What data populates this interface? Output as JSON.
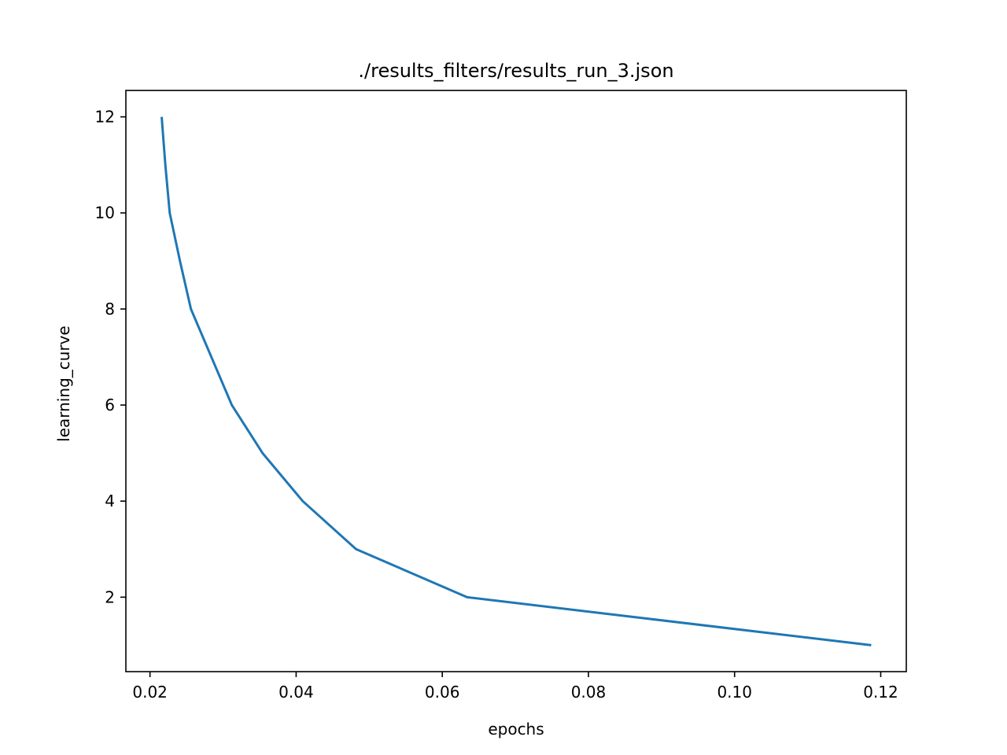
{
  "chart_data": {
    "type": "line",
    "title": "./results_filters/results_run_3.json",
    "xlabel": "epochs",
    "ylabel": "learning_curve",
    "xlim": [
      0.0167,
      0.1235
    ],
    "ylim": [
      0.45,
      12.55
    ],
    "x_ticks": [
      0.02,
      0.04,
      0.06,
      0.08,
      0.1,
      0.12
    ],
    "x_tick_labels": [
      "0.02",
      "0.04",
      "0.06",
      "0.08",
      "0.10",
      "0.12"
    ],
    "y_ticks": [
      2,
      4,
      6,
      8,
      10,
      12
    ],
    "y_tick_labels": [
      "2",
      "4",
      "6",
      "8",
      "10",
      "12"
    ],
    "grid": false,
    "series": [
      {
        "color": "#1f77b4",
        "x": [
          0.0216,
          0.0221,
          0.0227,
          0.0241,
          0.0256,
          0.0284,
          0.0312,
          0.0354,
          0.0409,
          0.0482,
          0.0634,
          0.1187
        ],
        "y": [
          12,
          11,
          10,
          9,
          8,
          7,
          6,
          5,
          4,
          3,
          2,
          1
        ]
      }
    ]
  }
}
